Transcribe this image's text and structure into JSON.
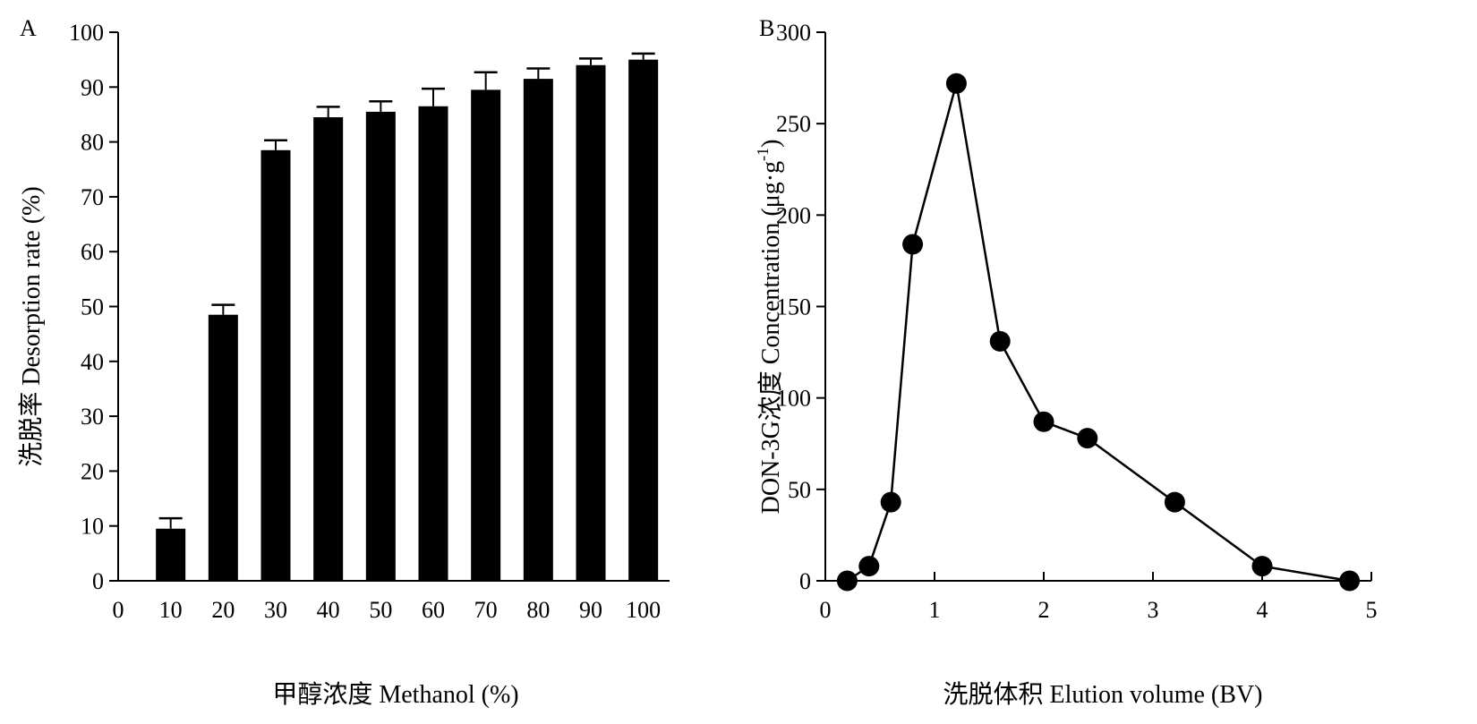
{
  "chart_data": [
    {
      "panel_label": "A",
      "type": "bar",
      "xlabel": "甲醇浓度 Methanol (%)",
      "ylabel": "洗脱率 Desorption rate (%)",
      "xlim": [
        0,
        105
      ],
      "ylim": [
        0,
        100
      ],
      "x_ticks": [
        "0",
        "10",
        "20",
        "30",
        "40",
        "50",
        "60",
        "70",
        "80",
        "90",
        "100"
      ],
      "y_ticks": [
        "0",
        "10",
        "20",
        "30",
        "40",
        "50",
        "60",
        "70",
        "80",
        "90",
        "100"
      ],
      "x": [
        10,
        20,
        30,
        40,
        50,
        60,
        70,
        80,
        90,
        100
      ],
      "values": [
        9.5,
        48.5,
        78.5,
        84.5,
        85.5,
        86.5,
        89.5,
        91.5,
        94,
        95
      ],
      "error": [
        1.9,
        1.8,
        1.8,
        1.9,
        1.9,
        3.2,
        3.2,
        1.9,
        1.2,
        1.1
      ],
      "bar_color": "#000000",
      "grid": false
    },
    {
      "panel_label": "B",
      "type": "line",
      "xlabel": "洗脱体积 Elution volume (BV)",
      "ylabel": "DON-3G浓度 Concentration (μg·g",
      "ylabel_superscript": "-1",
      "ylabel_close": ")",
      "xlim": [
        0,
        5
      ],
      "ylim": [
        0,
        300
      ],
      "x_ticks": [
        "0",
        "1",
        "2",
        "3",
        "4",
        "5"
      ],
      "y_ticks": [
        "0",
        "50",
        "100",
        "150",
        "200",
        "250",
        "300"
      ],
      "x": [
        0.2,
        0.4,
        0.6,
        0.8,
        1.2,
        1.6,
        2.0,
        2.4,
        3.2,
        4.0,
        4.8
      ],
      "values": [
        0,
        8,
        43,
        184,
        272,
        131,
        87,
        78,
        43,
        8,
        0
      ],
      "marker": "circle",
      "line_color": "#000000",
      "grid": false
    }
  ]
}
